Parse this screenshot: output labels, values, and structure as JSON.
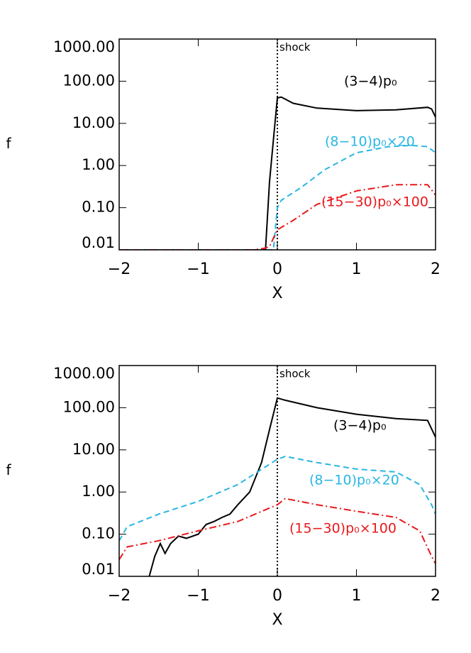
{
  "chart_data": [
    {
      "type": "line",
      "log_scale": true,
      "x_label": "X",
      "y_label": "f",
      "annotation": {
        "text": "shock",
        "x": 0
      },
      "xlim": [
        -2,
        2
      ],
      "ylim": [
        0.01,
        1000
      ],
      "xticks": [
        {
          "value": -2,
          "label": "−2"
        },
        {
          "value": -1,
          "label": "−1"
        },
        0,
        1,
        2
      ],
      "yticks": [
        {
          "value": 0.01,
          "label": "0.01"
        },
        {
          "value": 0.1,
          "label": "0.10"
        },
        {
          "value": 1,
          "label": "1.00"
        },
        {
          "value": 10,
          "label": "10.00"
        },
        {
          "value": 100,
          "label": "100.00"
        },
        {
          "value": 1000,
          "label": "1000.00"
        }
      ],
      "series": [
        {
          "name": "(3−4)p₀",
          "color": "#000000",
          "dash": "none",
          "x": [
            -2,
            -1.5,
            -1,
            -0.5,
            -0.15,
            -0.1,
            -0.05,
            0,
            0.05,
            0.2,
            0.5,
            1,
            1.5,
            1.9,
            1.95,
            2
          ],
          "values": [
            0.01,
            0.01,
            0.01,
            0.01,
            0.01,
            0.4,
            4,
            40,
            42,
            30,
            23,
            20,
            21,
            24,
            22,
            14
          ]
        },
        {
          "name": "(8−10)p₀×20",
          "color": "#29b6e3",
          "dash": "8,5",
          "x": [
            -2,
            -1,
            -0.5,
            -0.05,
            0,
            0.05,
            0.3,
            0.6,
            1,
            1.4,
            1.7,
            1.9,
            2
          ],
          "values": [
            0.01,
            0.01,
            0.01,
            0.01,
            0.1,
            0.15,
            0.3,
            0.8,
            2,
            2.8,
            3,
            2.8,
            2
          ]
        },
        {
          "name": "(15−30)p₀×100",
          "color": "#e8191c",
          "dash": "10,4,2,4",
          "x": [
            -2,
            -1,
            -0.3,
            -0.15,
            -0.1,
            0,
            0.2,
            0.5,
            1,
            1.5,
            1.9,
            2
          ],
          "values": [
            0.01,
            0.01,
            0.01,
            0.011,
            0.012,
            0.03,
            0.05,
            0.12,
            0.25,
            0.35,
            0.35,
            0.2
          ]
        }
      ]
    },
    {
      "type": "line",
      "log_scale": true,
      "x_label": "X",
      "y_label": "f",
      "annotation": {
        "text": "shock",
        "x": 0
      },
      "xlim": [
        -2,
        2
      ],
      "ylim": [
        0.01,
        1000
      ],
      "xticks": [
        {
          "value": -2,
          "label": "−2"
        },
        {
          "value": -1,
          "label": "−1"
        },
        0,
        1,
        2
      ],
      "yticks": [
        {
          "value": 0.01,
          "label": "0.01"
        },
        {
          "value": 0.1,
          "label": "0.10"
        },
        {
          "value": 1,
          "label": "1.00"
        },
        {
          "value": 10,
          "label": "10.00"
        },
        {
          "value": 100,
          "label": "100.00"
        },
        {
          "value": 1000,
          "label": "1000.00"
        }
      ],
      "series": [
        {
          "name": "(3−4)p₀",
          "color": "#000000",
          "dash": "none",
          "x": [
            -1.62,
            -1.55,
            -1.48,
            -1.42,
            -1.35,
            -1.25,
            -1.15,
            -1,
            -0.9,
            -0.8,
            -0.7,
            -0.6,
            -0.5,
            -0.35,
            -0.2,
            -0.1,
            0,
            0.1,
            0.5,
            1,
            1.5,
            1.9,
            2
          ],
          "values": [
            0.01,
            0.03,
            0.06,
            0.035,
            0.06,
            0.09,
            0.08,
            0.1,
            0.17,
            0.2,
            0.25,
            0.3,
            0.5,
            1,
            5,
            30,
            170,
            150,
            100,
            70,
            55,
            50,
            20
          ]
        },
        {
          "name": "(8−10)p₀×20",
          "color": "#29b6e3",
          "dash": "8,5",
          "x": [
            -2,
            -1.9,
            -1.5,
            -1,
            -0.5,
            0,
            0.1,
            0.5,
            1,
            1.5,
            1.8,
            1.95,
            2
          ],
          "values": [
            0.07,
            0.15,
            0.3,
            0.6,
            1.5,
            6,
            7,
            5,
            3.5,
            3,
            1.5,
            0.5,
            0.3
          ]
        },
        {
          "name": "(15−30)p₀×100",
          "color": "#e8191c",
          "dash": "10,4,2,4",
          "x": [
            -2,
            -1.9,
            -1.5,
            -1,
            -0.5,
            0,
            0.1,
            0.5,
            1,
            1.5,
            1.8,
            1.95,
            2
          ],
          "values": [
            0.025,
            0.05,
            0.07,
            0.12,
            0.2,
            0.5,
            0.7,
            0.5,
            0.35,
            0.25,
            0.12,
            0.03,
            0.02
          ]
        }
      ]
    }
  ]
}
